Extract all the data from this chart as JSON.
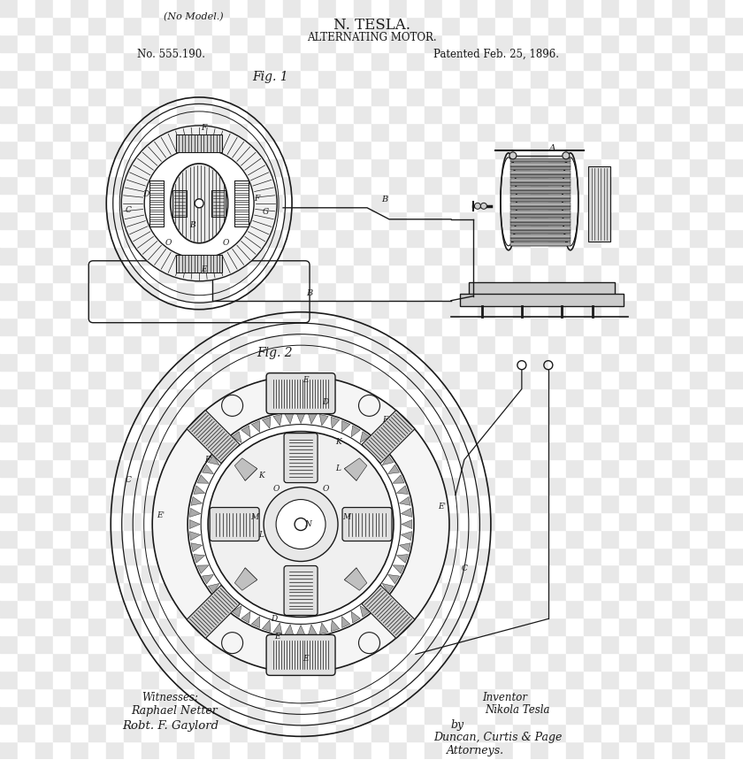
{
  "bg_color": "transparent",
  "title1": "N. TESLA.",
  "title2": "ALTERNATING MOTOR.",
  "no_model": "(No Model.)",
  "patent_no": "No. 555.190.",
  "patent_date": "Patented Feb. 25, 1896.",
  "fig1_label": "Fig. 1",
  "fig2_label": "Fig. 2",
  "witnesses_label": "Witnesses:",
  "witness1": "Raphael Netter",
  "witness2": "Robt. F. Gaylord",
  "inventor_label": "Inventor",
  "inventor_name": "Nikola Tesla",
  "by_label": "by",
  "attorney1": "Duncan, Curtis & Page",
  "attorney2": "Attorneys.",
  "line_color": "#1a1a1a",
  "text_color": "#1a1a1a",
  "checker_light": "#e8e8e8",
  "checker_dark": "#ffffff"
}
